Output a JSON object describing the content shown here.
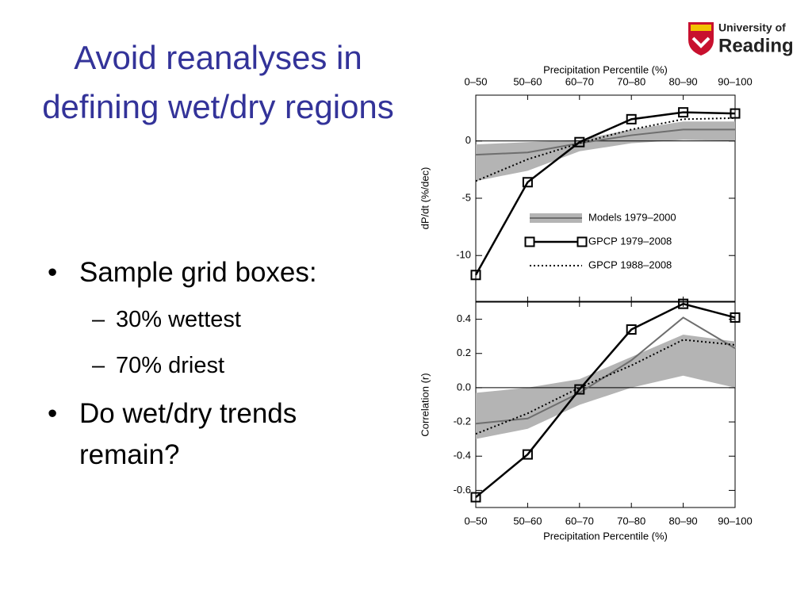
{
  "slide": {
    "title": "Avoid reanalyses in defining wet/dry regions",
    "bullets": [
      {
        "text": "Sample grid boxes:",
        "sub": [
          "30% wettest",
          "70% driest"
        ]
      },
      {
        "text": "Do wet/dry trends remain?"
      }
    ],
    "logo": {
      "line1": "University of",
      "line2": "Reading"
    }
  },
  "chart_data": [
    {
      "type": "line",
      "x_label": "Precipitation Percentile (%)",
      "x_axis_position": "top",
      "y_label": "dP/dt (%/dec)",
      "categories": [
        "0–50",
        "50–60",
        "60–70",
        "70–80",
        "80–90",
        "90–100"
      ],
      "ylim": [
        -14,
        4
      ],
      "yticks": [
        -10,
        -5,
        0
      ],
      "legend": "lower right",
      "series": [
        {
          "name": "Models 1979–2000",
          "color": "#6e6e6e",
          "band_color": "#b4b4b4",
          "values": [
            -1.2,
            -1.0,
            -0.2,
            0.5,
            1.0,
            1.0
          ],
          "band_low": [
            -3.5,
            -2.6,
            -0.9,
            -0.2,
            0.1,
            0.0
          ],
          "band_high": [
            -0.3,
            -0.1,
            0.1,
            1.0,
            1.7,
            1.7
          ]
        },
        {
          "name": "GPCP 1979–2008",
          "color": "#000000",
          "marker": "square",
          "values": [
            -11.7,
            -3.6,
            -0.1,
            1.9,
            2.5,
            2.4
          ]
        },
        {
          "name": "GPCP 1988–2008",
          "color": "#000000",
          "dash": "dotted",
          "values": [
            -3.5,
            -1.6,
            -0.2,
            1.0,
            1.9,
            2.0
          ]
        }
      ]
    },
    {
      "type": "line",
      "x_label": "Precipitation Percentile (%)",
      "x_axis_position": "bottom",
      "y_label": "Correlation (r)",
      "categories": [
        "0–50",
        "50–60",
        "60–70",
        "70–80",
        "80–90",
        "90–100"
      ],
      "ylim": [
        -0.7,
        0.5
      ],
      "yticks": [
        -0.6,
        -0.4,
        -0.2,
        {
          "value": 0,
          "label": "0.0"
        },
        0.2,
        0.4
      ],
      "series": [
        {
          "color": "#6e6e6e",
          "band_color": "#b4b4b4",
          "values": [
            -0.21,
            -0.18,
            -0.03,
            0.16,
            0.41,
            0.23
          ],
          "band_low": [
            -0.3,
            -0.24,
            -0.1,
            0.0,
            0.07,
            0.0
          ],
          "band_high": [
            -0.03,
            0.0,
            0.05,
            0.18,
            0.31,
            0.27
          ]
        },
        {
          "color": "#000000",
          "marker": "square",
          "values": [
            -0.64,
            -0.39,
            -0.01,
            0.34,
            0.49,
            0.41
          ]
        },
        {
          "color": "#000000",
          "dash": "dotted",
          "values": [
            -0.27,
            -0.15,
            0.0,
            0.13,
            0.28,
            0.25
          ]
        }
      ]
    }
  ]
}
